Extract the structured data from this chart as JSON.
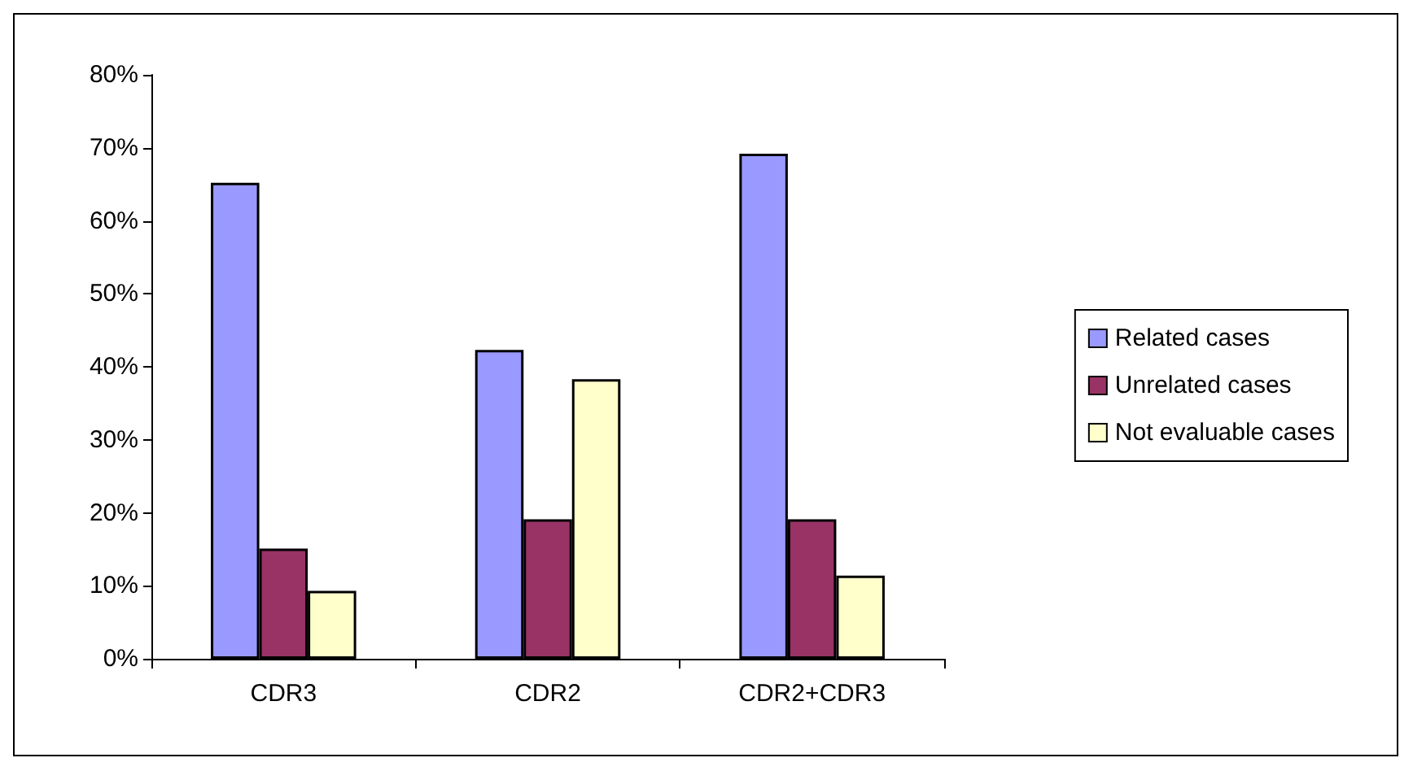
{
  "chart_data": {
    "type": "bar",
    "categories": [
      "CDR3",
      "CDR2",
      "CDR2+CDR3"
    ],
    "series": [
      {
        "name": "Related cases",
        "color": "#9999ff",
        "values": [
          65.2,
          42.3,
          69.2
        ]
      },
      {
        "name": "Unrelated cases",
        "color": "#993366",
        "values": [
          15.1,
          19.1,
          19.1
        ]
      },
      {
        "name": "Not evaluable cases",
        "color": "#ffffcc",
        "values": [
          9.3,
          38.3,
          11.4
        ]
      }
    ],
    "ylim": [
      0,
      80
    ],
    "yticks": [
      {
        "value": 0,
        "label": "0%"
      },
      {
        "value": 10,
        "label": "10%"
      },
      {
        "value": 20,
        "label": "20%"
      },
      {
        "value": 30,
        "label": "30%"
      },
      {
        "value": 40,
        "label": "40%"
      },
      {
        "value": 50,
        "label": "50%"
      },
      {
        "value": 60,
        "label": "60%"
      },
      {
        "value": 70,
        "label": "70%"
      },
      {
        "value": 80,
        "label": "80%"
      }
    ],
    "grid": false,
    "legend": "right"
  }
}
